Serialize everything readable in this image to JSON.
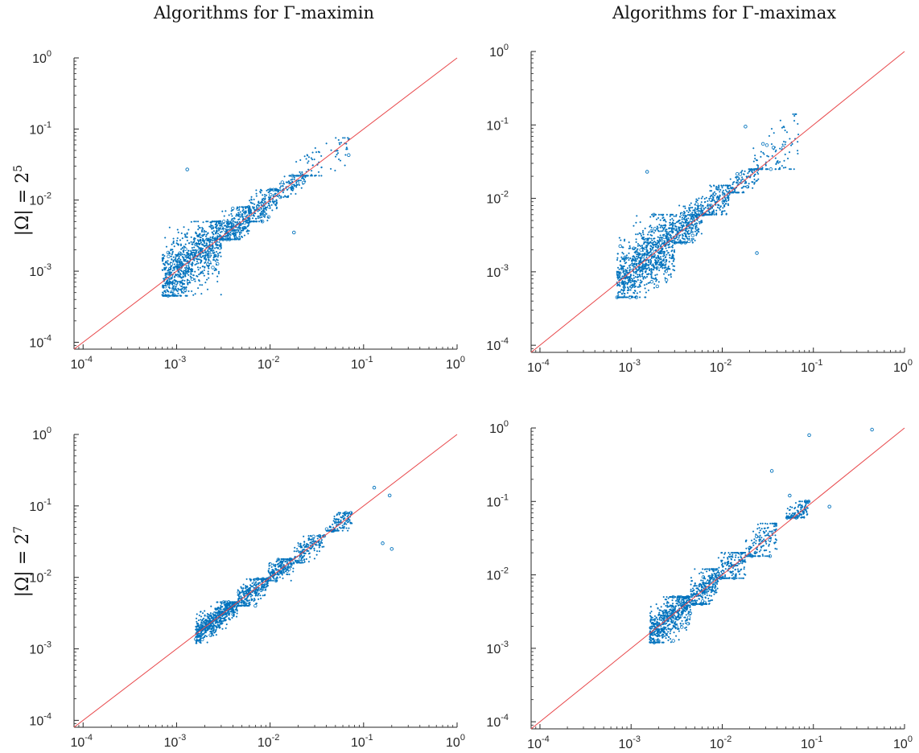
{
  "column_titles": [
    "Algorithms for Γ-maximin",
    "Algorithms for Γ-maximax"
  ],
  "row_labels": [
    {
      "lhs": "|Ω| = 2",
      "exp": "5"
    },
    {
      "lhs": "|Ω| = 2",
      "exp": "7"
    }
  ],
  "colors": {
    "points": "#0072bd",
    "reference_line": "#e8474a",
    "axis": "#262626"
  },
  "chart_data": [
    {
      "type": "scatter",
      "title": "Algorithms for Γ-maximin",
      "row": "|Ω| = 2^5",
      "x_scale": "log",
      "y_scale": "log",
      "xlim": [
        8e-05,
        1
      ],
      "ylim": [
        8e-05,
        1
      ],
      "x_ticks": [
        0.0001,
        0.001,
        0.01,
        0.1,
        1
      ],
      "y_ticks": [
        0.0001,
        0.001,
        0.01,
        0.1,
        1
      ],
      "tick_labels": {
        "base": "10",
        "exponents": [
          "-4",
          "-3",
          "-2",
          "-1",
          "0"
        ]
      },
      "reference_line": "y = x",
      "grid": false,
      "clusters": [
        {
          "x_range": [
            0.0007,
            0.003
          ],
          "y_range": [
            0.00045,
            0.005
          ],
          "count": 900,
          "spread": "wide"
        },
        {
          "x_range": [
            0.003,
            0.006
          ],
          "y_range": [
            0.0028,
            0.008
          ],
          "count": 300,
          "spread": "medium"
        },
        {
          "x_range": [
            0.006,
            0.012
          ],
          "y_range": [
            0.005,
            0.014
          ],
          "count": 200,
          "spread": "medium"
        },
        {
          "x_range": [
            0.012,
            0.025
          ],
          "y_range": [
            0.011,
            0.022
          ],
          "count": 120,
          "spread": "tight"
        },
        {
          "x_range": [
            0.018,
            0.07
          ],
          "y_range": [
            0.022,
            0.075
          ],
          "count": 90,
          "spread": "medium"
        }
      ],
      "outliers": [
        {
          "x": 0.0013,
          "y": 0.027
        },
        {
          "x": 0.018,
          "y": 0.0035
        }
      ]
    },
    {
      "type": "scatter",
      "title": "Algorithms for Γ-maximax",
      "row": "|Ω| = 2^5",
      "x_scale": "log",
      "y_scale": "log",
      "xlim": [
        8e-05,
        1
      ],
      "ylim": [
        8e-05,
        1
      ],
      "x_ticks": [
        0.0001,
        0.001,
        0.01,
        0.1,
        1
      ],
      "y_ticks": [
        0.0001,
        0.001,
        0.01,
        0.1,
        1
      ],
      "tick_labels": {
        "base": "10",
        "exponents": [
          "-4",
          "-3",
          "-2",
          "-1",
          "0"
        ]
      },
      "reference_line": "y = x",
      "grid": false,
      "clusters": [
        {
          "x_range": [
            0.0007,
            0.003
          ],
          "y_range": [
            0.00045,
            0.006
          ],
          "count": 900,
          "spread": "wide"
        },
        {
          "x_range": [
            0.003,
            0.006
          ],
          "y_range": [
            0.0025,
            0.01
          ],
          "count": 300,
          "spread": "medium"
        },
        {
          "x_range": [
            0.006,
            0.012
          ],
          "y_range": [
            0.006,
            0.015
          ],
          "count": 200,
          "spread": "medium"
        },
        {
          "x_range": [
            0.012,
            0.025
          ],
          "y_range": [
            0.012,
            0.025
          ],
          "count": 120,
          "spread": "tight"
        },
        {
          "x_range": [
            0.022,
            0.07
          ],
          "y_range": [
            0.025,
            0.14
          ],
          "count": 110,
          "spread": "wide"
        }
      ],
      "outliers": [
        {
          "x": 0.0015,
          "y": 0.023
        },
        {
          "x": 0.024,
          "y": 0.0018
        },
        {
          "x": 0.018,
          "y": 0.095
        }
      ]
    },
    {
      "type": "scatter",
      "title": "Algorithms for Γ-maximin",
      "row": "|Ω| = 2^7",
      "x_scale": "log",
      "y_scale": "log",
      "xlim": [
        8e-05,
        1
      ],
      "ylim": [
        8e-05,
        1
      ],
      "x_ticks": [
        0.0001,
        0.001,
        0.01,
        0.1,
        1
      ],
      "y_ticks": [
        0.0001,
        0.001,
        0.01,
        0.1,
        1
      ],
      "tick_labels": {
        "base": "10",
        "exponents": [
          "-4",
          "-3",
          "-2",
          "-1",
          "0"
        ]
      },
      "reference_line": "y = x",
      "grid": false,
      "clusters": [
        {
          "x_range": [
            0.0016,
            0.0045
          ],
          "y_range": [
            0.0012,
            0.0045
          ],
          "count": 600,
          "spread": "tight"
        },
        {
          "x_range": [
            0.0045,
            0.0095
          ],
          "y_range": [
            0.004,
            0.0095
          ],
          "count": 300,
          "spread": "tight"
        },
        {
          "x_range": [
            0.0095,
            0.018
          ],
          "y_range": [
            0.009,
            0.018
          ],
          "count": 200,
          "spread": "tight"
        },
        {
          "x_range": [
            0.018,
            0.038
          ],
          "y_range": [
            0.016,
            0.038
          ],
          "count": 160,
          "spread": "tight"
        },
        {
          "x_range": [
            0.04,
            0.075
          ],
          "y_range": [
            0.045,
            0.08
          ],
          "count": 150,
          "spread": "tight"
        }
      ],
      "outliers": [
        {
          "x": 0.13,
          "y": 0.18
        },
        {
          "x": 0.2,
          "y": 0.025
        },
        {
          "x": 0.16,
          "y": 0.03
        },
        {
          "x": 0.19,
          "y": 0.14
        }
      ]
    },
    {
      "type": "scatter",
      "title": "Algorithms for Γ-maximax",
      "row": "|Ω| = 2^7",
      "x_scale": "log",
      "y_scale": "log",
      "xlim": [
        8e-05,
        1
      ],
      "ylim": [
        8e-05,
        1
      ],
      "x_ticks": [
        0.0001,
        0.001,
        0.01,
        0.1,
        1
      ],
      "y_ticks": [
        0.0001,
        0.001,
        0.01,
        0.1,
        1
      ],
      "tick_labels": {
        "base": "10",
        "exponents": [
          "-4",
          "-3",
          "-2",
          "-1",
          "0"
        ]
      },
      "reference_line": "y = x",
      "grid": false,
      "clusters": [
        {
          "x_range": [
            0.0016,
            0.0045
          ],
          "y_range": [
            0.0012,
            0.005
          ],
          "count": 600,
          "spread": "medium"
        },
        {
          "x_range": [
            0.0045,
            0.009
          ],
          "y_range": [
            0.004,
            0.012
          ],
          "count": 300,
          "spread": "medium"
        },
        {
          "x_range": [
            0.009,
            0.018
          ],
          "y_range": [
            0.009,
            0.02
          ],
          "count": 200,
          "spread": "medium"
        },
        {
          "x_range": [
            0.018,
            0.04
          ],
          "y_range": [
            0.018,
            0.05
          ],
          "count": 160,
          "spread": "medium"
        },
        {
          "x_range": [
            0.05,
            0.09
          ],
          "y_range": [
            0.06,
            0.1
          ],
          "count": 150,
          "spread": "tight"
        }
      ],
      "outliers": [
        {
          "x": 0.44,
          "y": 0.95
        },
        {
          "x": 0.09,
          "y": 0.8
        },
        {
          "x": 0.035,
          "y": 0.26
        },
        {
          "x": 0.15,
          "y": 0.085
        },
        {
          "x": 0.055,
          "y": 0.12
        }
      ]
    }
  ]
}
